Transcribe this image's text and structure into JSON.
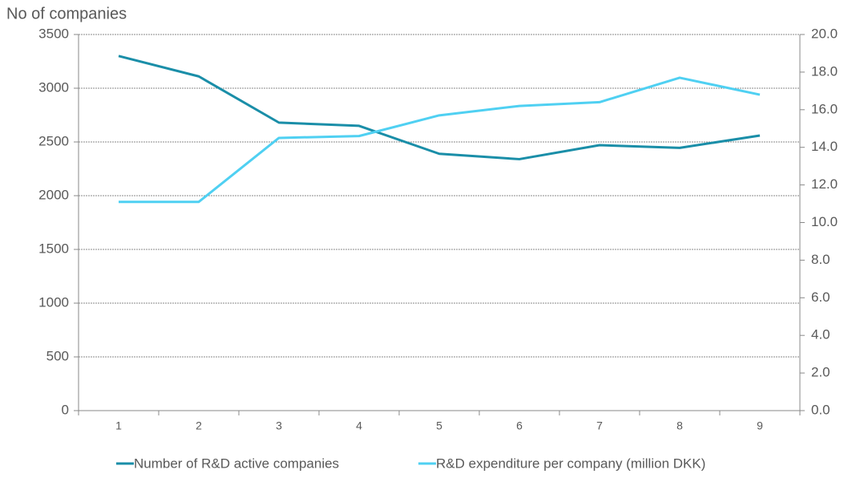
{
  "chart_data": {
    "type": "line",
    "y_axis_label": "No of companies",
    "categories": [
      "1",
      "2",
      "3",
      "4",
      "5",
      "6",
      "7",
      "8",
      "9"
    ],
    "series": [
      {
        "name": "Number of R&D active companies",
        "color": "#1a8ea8",
        "values": [
          3300,
          3110,
          2680,
          2650,
          2390,
          2340,
          2470,
          2445,
          2560
        ]
      },
      {
        "name": "R&D expenditure per company (million DKK)",
        "color": "#4fd0f2",
        "axis": "y2",
        "values": [
          11.1,
          11.1,
          14.5,
          14.6,
          15.7,
          16.2,
          16.4,
          17.7,
          16.8
        ]
      }
    ],
    "ylim": [
      0,
      3500
    ],
    "yticks": [
      0,
      500,
      1000,
      1500,
      2000,
      2500,
      3000,
      3500
    ],
    "y2lim": [
      0,
      20
    ],
    "y2ticks": [
      {
        "value": 0,
        "label": "0.0"
      },
      {
        "value": 2,
        "label": "2.0"
      },
      {
        "value": 4,
        "label": "4.0"
      },
      {
        "value": 6,
        "label": "6.0"
      },
      {
        "value": 8,
        "label": "8.0"
      },
      {
        "value": 10,
        "label": "10.0"
      },
      {
        "value": 12,
        "label": "12.0"
      },
      {
        "value": 14,
        "label": "14.0"
      },
      {
        "value": 16,
        "label": "16.0"
      },
      {
        "value": 18,
        "label": "18.0"
      },
      {
        "value": 20,
        "label": "20.0"
      }
    ],
    "grid": true,
    "legend": "bottom"
  }
}
